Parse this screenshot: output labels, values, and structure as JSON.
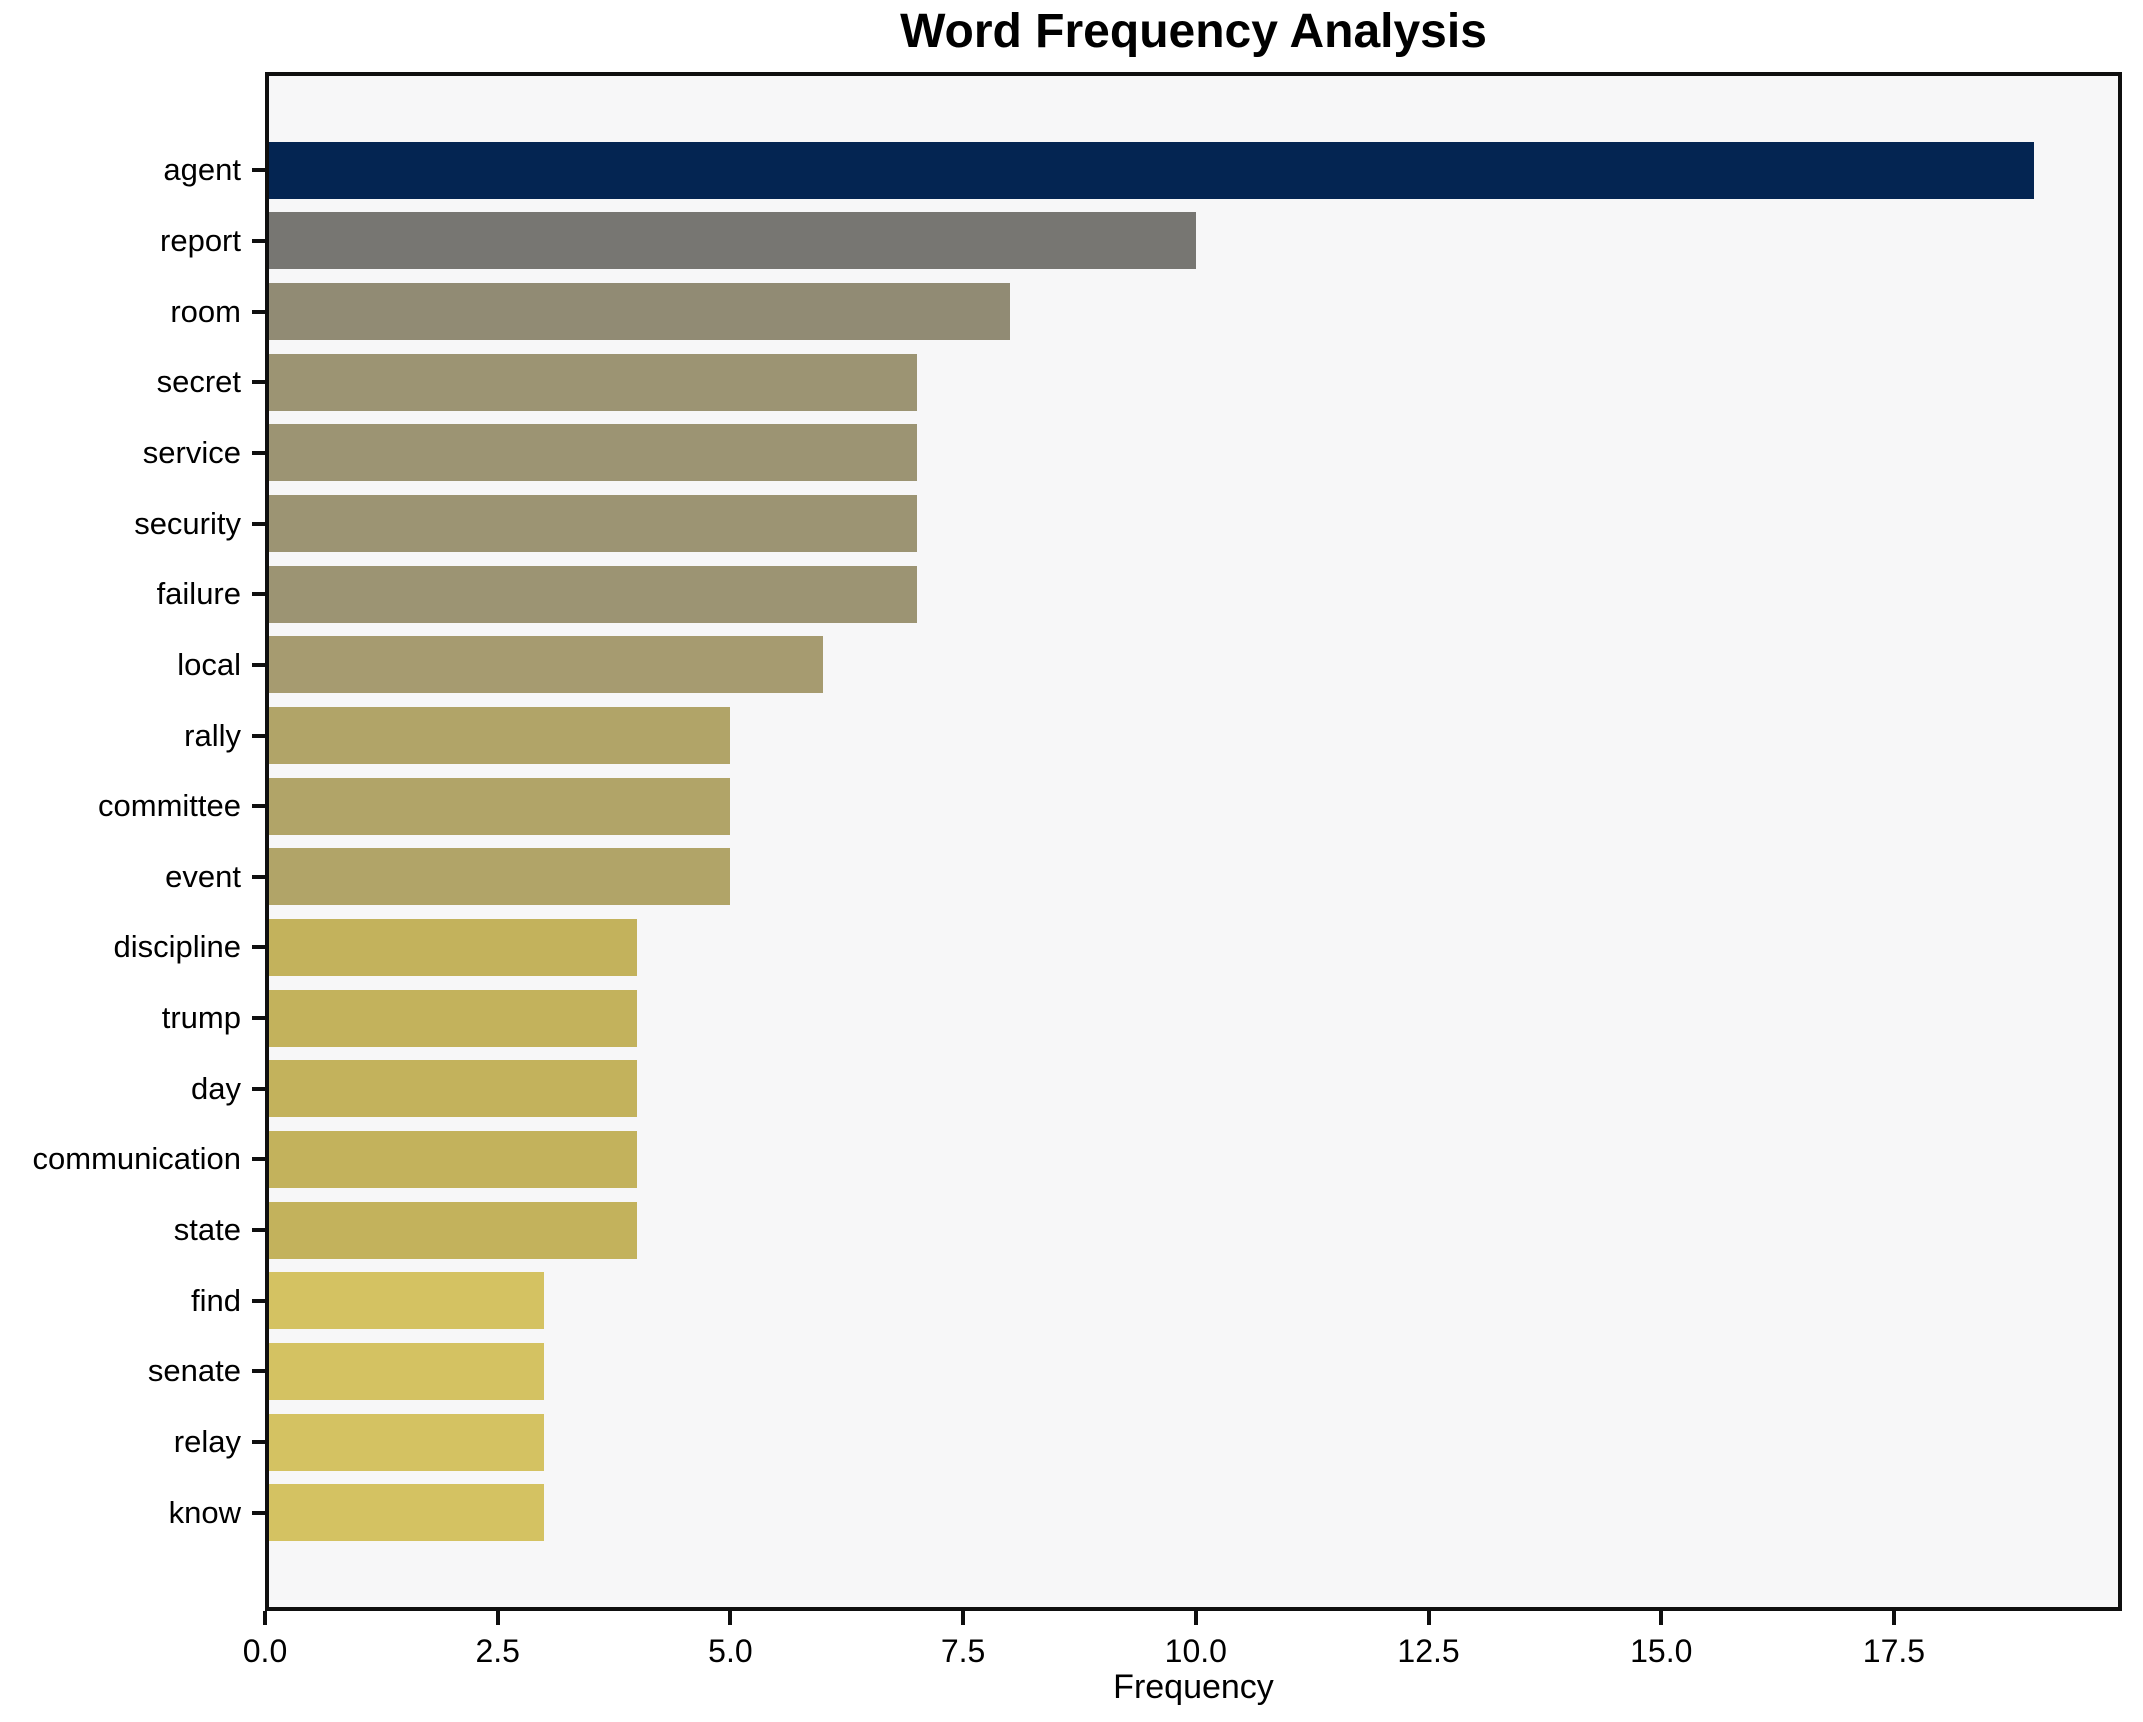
{
  "chart_data": {
    "type": "bar",
    "orientation": "horizontal",
    "title": "Word Frequency Analysis",
    "xlabel": "Frequency",
    "ylabel": "",
    "xlim": [
      0,
      19.95
    ],
    "xticks": [
      0,
      2.5,
      5,
      7.5,
      10,
      12.5,
      15,
      17.5
    ],
    "xtick_labels": [
      "0.0",
      "2.5",
      "5.0",
      "7.5",
      "10.0",
      "12.5",
      "15.0",
      "17.5"
    ],
    "grid": false,
    "legend_position": "none",
    "figure_background": "#ffffff",
    "plot_background": "#f7f7f8",
    "axis_color": "#0f0f0f",
    "categories": [
      "agent",
      "report",
      "room",
      "secret",
      "service",
      "security",
      "failure",
      "local",
      "rally",
      "committee",
      "event",
      "discipline",
      "trump",
      "day",
      "communication",
      "state",
      "find",
      "senate",
      "relay",
      "know"
    ],
    "values": [
      19,
      10,
      8,
      7,
      7,
      7,
      7,
      6,
      5,
      5,
      5,
      4,
      4,
      4,
      4,
      4,
      3,
      3,
      3,
      3
    ],
    "bar_colors": [
      "#042552",
      "#777672",
      "#918b74",
      "#9c9473",
      "#9c9473",
      "#9c9473",
      "#9c9473",
      "#a69b70",
      "#b1a468",
      "#b1a468",
      "#b1a468",
      "#c3b25c",
      "#c3b25c",
      "#c3b25c",
      "#c3b25c",
      "#c3b25c",
      "#d4c262",
      "#d4c262",
      "#d4c262",
      "#d4c262"
    ]
  }
}
